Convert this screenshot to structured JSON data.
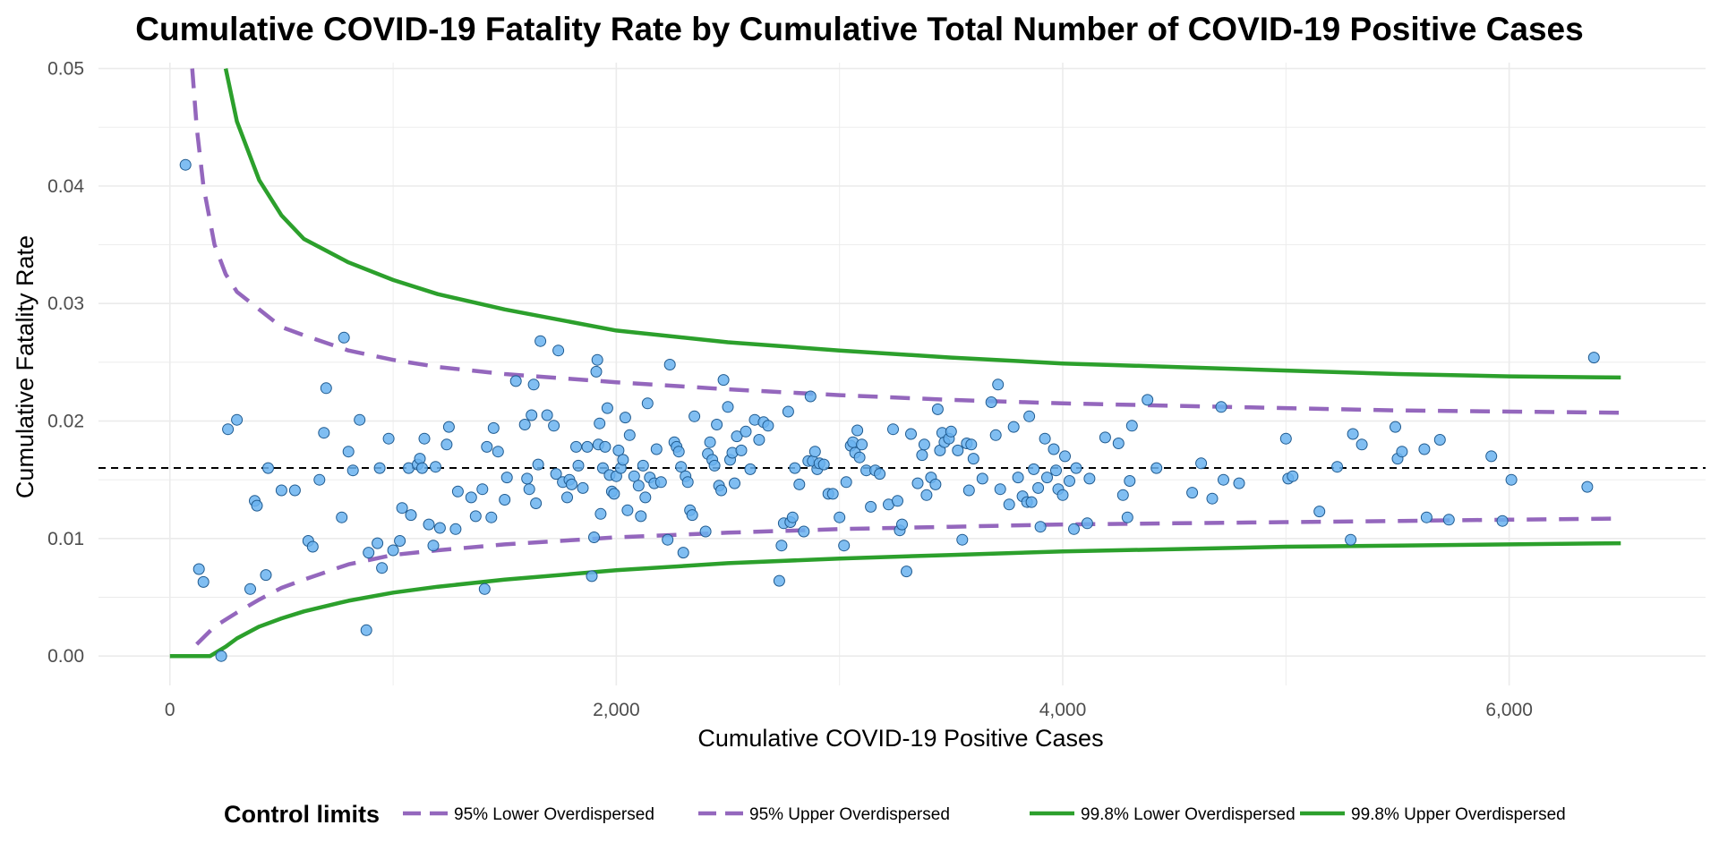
{
  "chart_data": {
    "type": "scatter",
    "title": "Cumulative COVID-19 Fatality Rate by Cumulative Total Number of COVID-19 Positive Cases",
    "xlabel": "Cumulative COVID-19 Positive Cases",
    "ylabel": "Cumulative Fatality Rate",
    "xlim": [
      -320,
      6880
    ],
    "ylim": [
      -0.0025,
      0.0505
    ],
    "x_ticks": [
      0,
      2000,
      4000,
      6000
    ],
    "x_tick_labels": [
      "0",
      "2,000",
      "4,000",
      "6,000"
    ],
    "y_ticks": [
      0.0,
      0.01,
      0.02,
      0.03,
      0.04,
      0.05
    ],
    "y_tick_labels": [
      "0.00",
      "0.01",
      "0.02",
      "0.03",
      "0.04",
      "0.05"
    ],
    "grid": true,
    "mean_rate": 0.016,
    "control_limit_colors": {
      "overdispersed_95": "#9467bd",
      "overdispersed_998": "#2ca02c"
    },
    "point_fill": "#6ab3f0",
    "point_stroke": "#1f5a8f",
    "legend": {
      "position": "bottom",
      "title": "Control limits",
      "entries": [
        {
          "label": "95% Lower Overdispersed",
          "color": "#9467bd",
          "dash": true
        },
        {
          "label": "95% Upper Overdispersed",
          "color": "#9467bd",
          "dash": true
        },
        {
          "label": "99.8% Lower Overdispersed",
          "color": "#2ca02c",
          "dash": false
        },
        {
          "label": "99.8% Upper Overdispersed",
          "color": "#2ca02c",
          "dash": false
        }
      ]
    },
    "lines": [
      {
        "name": "95% Lower Overdispersed",
        "color": "#9467bd",
        "dashed": true,
        "x": [
          120,
          200,
          300,
          400,
          500,
          600,
          800,
          1000,
          1200,
          1500,
          2000,
          2500,
          3000,
          3500,
          4000,
          4500,
          5000,
          5500,
          6000,
          6500
        ],
        "y": [
          0.001,
          0.0025,
          0.0037,
          0.0048,
          0.0058,
          0.0065,
          0.0078,
          0.0086,
          0.009,
          0.0095,
          0.0101,
          0.0105,
          0.0108,
          0.011,
          0.0112,
          0.0113,
          0.0114,
          0.0115,
          0.0116,
          0.0117
        ]
      },
      {
        "name": "95% Upper Overdispersed",
        "color": "#9467bd",
        "dashed": true,
        "x": [
          100,
          120,
          150,
          200,
          250,
          300,
          400,
          500,
          600,
          800,
          1000,
          1200,
          1500,
          2000,
          2500,
          3000,
          3500,
          4000,
          4500,
          5000,
          5500,
          6000,
          6500
        ],
        "y": [
          0.05,
          0.045,
          0.04,
          0.035,
          0.0325,
          0.031,
          0.0295,
          0.028,
          0.0273,
          0.026,
          0.0252,
          0.0246,
          0.024,
          0.0233,
          0.0227,
          0.0222,
          0.0218,
          0.0215,
          0.0213,
          0.0211,
          0.0209,
          0.0208,
          0.0207
        ]
      },
      {
        "name": "99.8% Lower Overdispersed",
        "color": "#2ca02c",
        "dashed": false,
        "x": [
          0,
          180,
          250,
          300,
          400,
          500,
          600,
          800,
          1000,
          1200,
          1500,
          2000,
          2500,
          3000,
          3500,
          4000,
          4500,
          5000,
          5500,
          6000,
          6500
        ],
        "y": [
          0.0,
          0.0,
          0.0008,
          0.0015,
          0.0025,
          0.0032,
          0.0038,
          0.0047,
          0.0054,
          0.0059,
          0.0065,
          0.0073,
          0.0079,
          0.0083,
          0.0086,
          0.0089,
          0.0091,
          0.0093,
          0.0094,
          0.0095,
          0.0096
        ]
      },
      {
        "name": "99.8% Upper Overdispersed",
        "color": "#2ca02c",
        "dashed": false,
        "x": [
          250,
          300,
          400,
          500,
          600,
          800,
          1000,
          1200,
          1500,
          2000,
          2500,
          3000,
          3500,
          4000,
          4500,
          5000,
          5500,
          6000,
          6500
        ],
        "y": [
          0.05,
          0.0455,
          0.0405,
          0.0375,
          0.0355,
          0.0335,
          0.032,
          0.0308,
          0.0295,
          0.0277,
          0.0267,
          0.026,
          0.0254,
          0.0249,
          0.0246,
          0.0243,
          0.024,
          0.0238,
          0.0237
        ]
      }
    ],
    "points": [
      [
        70,
        0.0418
      ],
      [
        130,
        0.0074
      ],
      [
        150,
        0.0063
      ],
      [
        230,
        0.0
      ],
      [
        260,
        0.0193
      ],
      [
        300,
        0.0201
      ],
      [
        360,
        0.0057
      ],
      [
        380,
        0.0132
      ],
      [
        390,
        0.0128
      ],
      [
        430,
        0.0069
      ],
      [
        440,
        0.016
      ],
      [
        500,
        0.0141
      ],
      [
        560,
        0.0141
      ],
      [
        620,
        0.0098
      ],
      [
        640,
        0.0093
      ],
      [
        670,
        0.015
      ],
      [
        690,
        0.019
      ],
      [
        700,
        0.0228
      ],
      [
        770,
        0.0118
      ],
      [
        780,
        0.0271
      ],
      [
        800,
        0.0174
      ],
      [
        820,
        0.0158
      ],
      [
        850,
        0.0201
      ],
      [
        880,
        0.0022
      ],
      [
        890,
        0.0088
      ],
      [
        930,
        0.0096
      ],
      [
        940,
        0.016
      ],
      [
        950,
        0.0075
      ],
      [
        980,
        0.0185
      ],
      [
        1000,
        0.009
      ],
      [
        1030,
        0.0098
      ],
      [
        1040,
        0.0126
      ],
      [
        1070,
        0.016
      ],
      [
        1080,
        0.012
      ],
      [
        1110,
        0.0163
      ],
      [
        1120,
        0.0168
      ],
      [
        1130,
        0.016
      ],
      [
        1140,
        0.0185
      ],
      [
        1160,
        0.0112
      ],
      [
        1180,
        0.0094
      ],
      [
        1190,
        0.0161
      ],
      [
        1210,
        0.0109
      ],
      [
        1240,
        0.018
      ],
      [
        1250,
        0.0195
      ],
      [
        1280,
        0.0108
      ],
      [
        1290,
        0.014
      ],
      [
        1350,
        0.0135
      ],
      [
        1370,
        0.0119
      ],
      [
        1400,
        0.0142
      ],
      [
        1410,
        0.0057
      ],
      [
        1420,
        0.0178
      ],
      [
        1440,
        0.0118
      ],
      [
        1450,
        0.0194
      ],
      [
        1470,
        0.0174
      ],
      [
        1500,
        0.0133
      ],
      [
        1510,
        0.0152
      ],
      [
        1550,
        0.0234
      ],
      [
        1590,
        0.0197
      ],
      [
        1600,
        0.0151
      ],
      [
        1610,
        0.0142
      ],
      [
        1620,
        0.0205
      ],
      [
        1630,
        0.0231
      ],
      [
        1640,
        0.013
      ],
      [
        1650,
        0.0163
      ],
      [
        1660,
        0.0268
      ],
      [
        1690,
        0.0205
      ],
      [
        1720,
        0.0196
      ],
      [
        1730,
        0.0155
      ],
      [
        1740,
        0.026
      ],
      [
        1760,
        0.0148
      ],
      [
        1780,
        0.0135
      ],
      [
        1790,
        0.015
      ],
      [
        1800,
        0.0146
      ],
      [
        1820,
        0.0178
      ],
      [
        1830,
        0.0162
      ],
      [
        1850,
        0.0143
      ],
      [
        1870,
        0.0178
      ],
      [
        1890,
        0.0068
      ],
      [
        1900,
        0.0101
      ],
      [
        1910,
        0.0242
      ],
      [
        1915,
        0.0252
      ],
      [
        1920,
        0.018
      ],
      [
        1925,
        0.0198
      ],
      [
        1930,
        0.0121
      ],
      [
        1940,
        0.016
      ],
      [
        1950,
        0.0178
      ],
      [
        1960,
        0.0211
      ],
      [
        1970,
        0.0154
      ],
      [
        1980,
        0.014
      ],
      [
        1990,
        0.0138
      ],
      [
        2000,
        0.0153
      ],
      [
        2010,
        0.0175
      ],
      [
        2020,
        0.016
      ],
      [
        2030,
        0.0167
      ],
      [
        2040,
        0.0203
      ],
      [
        2050,
        0.0124
      ],
      [
        2060,
        0.0188
      ],
      [
        2080,
        0.0153
      ],
      [
        2100,
        0.0145
      ],
      [
        2110,
        0.0119
      ],
      [
        2120,
        0.0162
      ],
      [
        2130,
        0.0135
      ],
      [
        2140,
        0.0215
      ],
      [
        2150,
        0.0152
      ],
      [
        2170,
        0.0147
      ],
      [
        2180,
        0.0176
      ],
      [
        2200,
        0.0148
      ],
      [
        2230,
        0.0099
      ],
      [
        2240,
        0.0248
      ],
      [
        2260,
        0.0182
      ],
      [
        2270,
        0.0178
      ],
      [
        2280,
        0.0174
      ],
      [
        2290,
        0.0161
      ],
      [
        2300,
        0.0088
      ],
      [
        2310,
        0.0153
      ],
      [
        2320,
        0.0148
      ],
      [
        2330,
        0.0124
      ],
      [
        2340,
        0.012
      ],
      [
        2350,
        0.0204
      ],
      [
        2400,
        0.0106
      ],
      [
        2410,
        0.0172
      ],
      [
        2420,
        0.0182
      ],
      [
        2430,
        0.0167
      ],
      [
        2440,
        0.0162
      ],
      [
        2450,
        0.0197
      ],
      [
        2460,
        0.0145
      ],
      [
        2470,
        0.0141
      ],
      [
        2480,
        0.0235
      ],
      [
        2500,
        0.0212
      ],
      [
        2510,
        0.0167
      ],
      [
        2520,
        0.0173
      ],
      [
        2530,
        0.0147
      ],
      [
        2540,
        0.0187
      ],
      [
        2560,
        0.0175
      ],
      [
        2580,
        0.0191
      ],
      [
        2600,
        0.0159
      ],
      [
        2620,
        0.0201
      ],
      [
        2640,
        0.0184
      ],
      [
        2660,
        0.0199
      ],
      [
        2680,
        0.0196
      ],
      [
        2730,
        0.0064
      ],
      [
        2740,
        0.0094
      ],
      [
        2750,
        0.0113
      ],
      [
        2770,
        0.0208
      ],
      [
        2780,
        0.0114
      ],
      [
        2790,
        0.0118
      ],
      [
        2800,
        0.016
      ],
      [
        2820,
        0.0146
      ],
      [
        2840,
        0.0106
      ],
      [
        2860,
        0.0166
      ],
      [
        2870,
        0.0221
      ],
      [
        2880,
        0.0166
      ],
      [
        2890,
        0.0174
      ],
      [
        2900,
        0.0159
      ],
      [
        2910,
        0.0164
      ],
      [
        2930,
        0.0163
      ],
      [
        2950,
        0.0138
      ],
      [
        2970,
        0.0138
      ],
      [
        3000,
        0.0118
      ],
      [
        3020,
        0.0094
      ],
      [
        3030,
        0.0148
      ],
      [
        3050,
        0.0179
      ],
      [
        3060,
        0.0182
      ],
      [
        3070,
        0.0173
      ],
      [
        3080,
        0.0192
      ],
      [
        3090,
        0.0169
      ],
      [
        3100,
        0.018
      ],
      [
        3120,
        0.0158
      ],
      [
        3140,
        0.0127
      ],
      [
        3160,
        0.0158
      ],
      [
        3180,
        0.0155
      ],
      [
        3220,
        0.0129
      ],
      [
        3240,
        0.0193
      ],
      [
        3260,
        0.0132
      ],
      [
        3270,
        0.0107
      ],
      [
        3280,
        0.0112
      ],
      [
        3300,
        0.0072
      ],
      [
        3320,
        0.0189
      ],
      [
        3350,
        0.0147
      ],
      [
        3370,
        0.0171
      ],
      [
        3380,
        0.018
      ],
      [
        3390,
        0.0137
      ],
      [
        3410,
        0.0152
      ],
      [
        3430,
        0.0146
      ],
      [
        3440,
        0.021
      ],
      [
        3450,
        0.0175
      ],
      [
        3460,
        0.019
      ],
      [
        3470,
        0.0182
      ],
      [
        3490,
        0.0185
      ],
      [
        3500,
        0.0191
      ],
      [
        3530,
        0.0175
      ],
      [
        3550,
        0.0099
      ],
      [
        3570,
        0.0181
      ],
      [
        3580,
        0.0141
      ],
      [
        3590,
        0.018
      ],
      [
        3600,
        0.0168
      ],
      [
        3640,
        0.0151
      ],
      [
        3680,
        0.0216
      ],
      [
        3700,
        0.0188
      ],
      [
        3710,
        0.0231
      ],
      [
        3720,
        0.0142
      ],
      [
        3760,
        0.0129
      ],
      [
        3780,
        0.0195
      ],
      [
        3800,
        0.0152
      ],
      [
        3820,
        0.0136
      ],
      [
        3840,
        0.0131
      ],
      [
        3850,
        0.0204
      ],
      [
        3860,
        0.0131
      ],
      [
        3870,
        0.0159
      ],
      [
        3890,
        0.0143
      ],
      [
        3900,
        0.011
      ],
      [
        3920,
        0.0185
      ],
      [
        3930,
        0.0152
      ],
      [
        3960,
        0.0176
      ],
      [
        3970,
        0.0158
      ],
      [
        3980,
        0.0142
      ],
      [
        4000,
        0.0137
      ],
      [
        4010,
        0.017
      ],
      [
        4030,
        0.0149
      ],
      [
        4050,
        0.0108
      ],
      [
        4060,
        0.016
      ],
      [
        4110,
        0.0113
      ],
      [
        4120,
        0.0151
      ],
      [
        4190,
        0.0186
      ],
      [
        4250,
        0.0181
      ],
      [
        4270,
        0.0137
      ],
      [
        4290,
        0.0118
      ],
      [
        4300,
        0.0149
      ],
      [
        4310,
        0.0196
      ],
      [
        4380,
        0.0218
      ],
      [
        4420,
        0.016
      ],
      [
        4580,
        0.0139
      ],
      [
        4620,
        0.0164
      ],
      [
        4670,
        0.0134
      ],
      [
        4710,
        0.0212
      ],
      [
        4720,
        0.015
      ],
      [
        4790,
        0.0147
      ],
      [
        5000,
        0.0185
      ],
      [
        5010,
        0.0151
      ],
      [
        5030,
        0.0153
      ],
      [
        5150,
        0.0123
      ],
      [
        5230,
        0.0161
      ],
      [
        5290,
        0.0099
      ],
      [
        5300,
        0.0189
      ],
      [
        5340,
        0.018
      ],
      [
        5490,
        0.0195
      ],
      [
        5500,
        0.0168
      ],
      [
        5520,
        0.0174
      ],
      [
        5620,
        0.0176
      ],
      [
        5630,
        0.0118
      ],
      [
        5690,
        0.0184
      ],
      [
        5730,
        0.0116
      ],
      [
        5920,
        0.017
      ],
      [
        5970,
        0.0115
      ],
      [
        6010,
        0.015
      ],
      [
        6350,
        0.0144
      ],
      [
        6380,
        0.0254
      ]
    ]
  }
}
